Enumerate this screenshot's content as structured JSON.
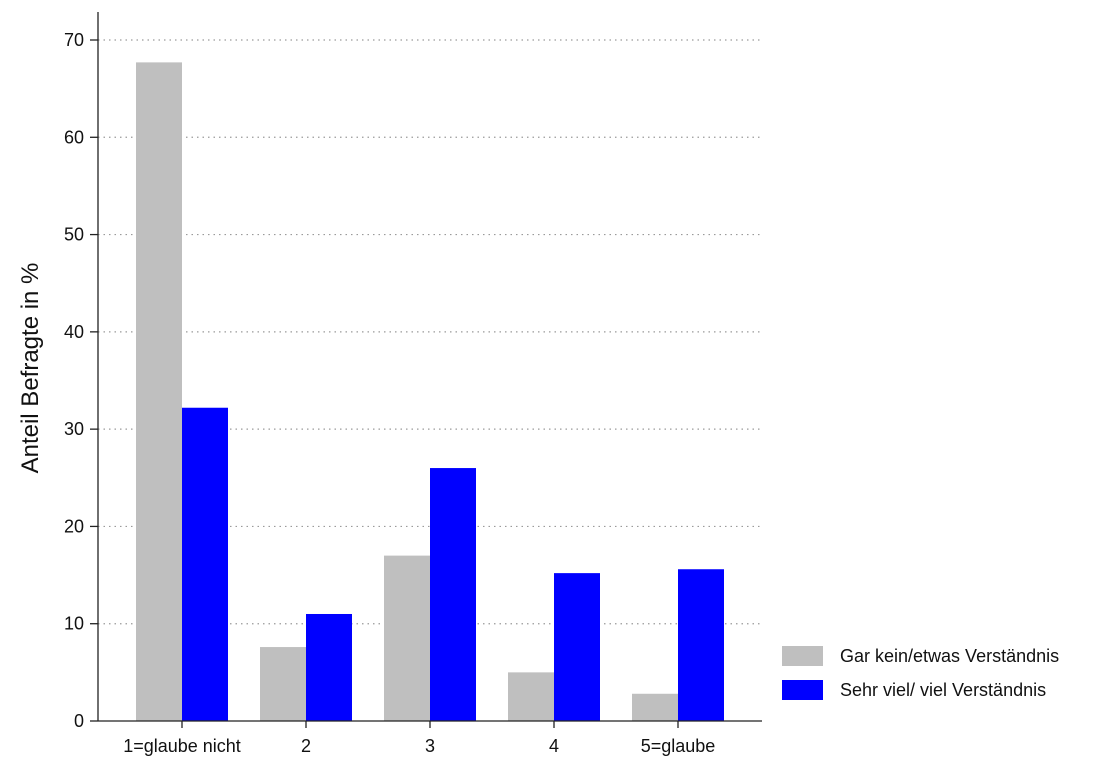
{
  "chart_data": {
    "type": "bar",
    "categories": [
      "1=glaube nicht",
      "2",
      "3",
      "4",
      "5=glaube"
    ],
    "series": [
      {
        "name": "Gar kein/etwas Verständnis",
        "color": "#bfbfbf",
        "values": [
          67.7,
          7.6,
          17.0,
          5.0,
          2.8
        ]
      },
      {
        "name": "Sehr viel/ viel Verständnis",
        "color": "#0000ff",
        "values": [
          32.2,
          11.0,
          26.0,
          15.2,
          15.6
        ]
      }
    ],
    "title": "",
    "xlabel": "",
    "ylabel": "Anteil Befragte in %",
    "ylim": [
      0,
      70
    ],
    "yticks": [
      0,
      10,
      20,
      30,
      40,
      50,
      60,
      70
    ],
    "grid": "horizontal dotted",
    "legend_position": "right"
  }
}
